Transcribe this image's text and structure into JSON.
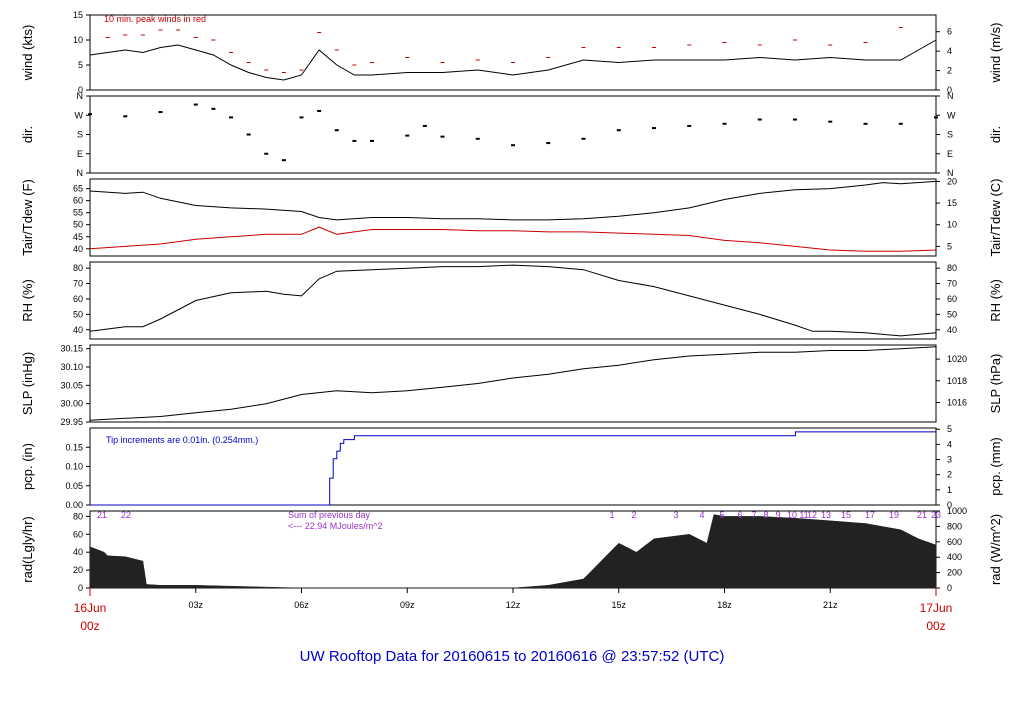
{
  "title": "UW Rooftop Data for 20160615  to  20160616 @ 23:57:52  (UTC)",
  "x_axis": {
    "start_label": [
      "16Jun",
      "00z"
    ],
    "end_label": [
      "17Jun",
      "00z"
    ],
    "ticks": [
      "03z",
      "06z",
      "09z",
      "12z",
      "15z",
      "18z",
      "21z"
    ]
  },
  "colors": {
    "dark": "#000000",
    "red": "#cc0000",
    "blue": "#0000cc",
    "purple": "#9933cc",
    "title": "#0000cc"
  },
  "annotations": {
    "wind_note": "10 min. peak winds in red",
    "pcp_note": "Tip increments are 0.01in. (0.254mm.)",
    "rad_sum_line1": "Sum of previous day",
    "rad_sum_line2": "<--- 22.94 MJoules/m^2",
    "rad_hours": [
      "21",
      "22",
      "1",
      "2",
      "3",
      "4",
      "5",
      "6",
      "7",
      "8",
      "9",
      "10",
      "11",
      "12",
      "13",
      "15",
      "17",
      "19",
      "21",
      "23"
    ]
  },
  "chart_data": [
    {
      "id": "wind",
      "type": "line",
      "ylabel_left": "wind (kts)",
      "ylabel_right": "wind (m/s)",
      "left_ticks": [
        "0",
        "5",
        "10",
        "15"
      ],
      "right_ticks": [
        "0",
        "2",
        "4",
        "6"
      ],
      "ylim": [
        0,
        15
      ],
      "right_ylim": [
        0,
        7.72
      ],
      "series": [
        {
          "name": "wind (kts)",
          "color": "#000000",
          "x": [
            0,
            0.5,
            1,
            1.5,
            2,
            2.5,
            3,
            3.5,
            4,
            4.5,
            5,
            5.5,
            6,
            6.5,
            7,
            7.5,
            8,
            9,
            10,
            11,
            12,
            13,
            14,
            15,
            16,
            17,
            18,
            19,
            20,
            21,
            22,
            23,
            24
          ],
          "y": [
            7,
            7.5,
            8,
            7.5,
            8.5,
            9,
            8,
            7,
            5,
            3.5,
            2.5,
            2,
            3,
            8,
            5,
            3,
            3,
            3.5,
            3.5,
            4,
            3,
            4,
            6,
            5.5,
            6,
            6,
            6,
            6.5,
            6,
            6.5,
            6,
            6,
            10
          ]
        },
        {
          "name": "10 min. peak winds",
          "color": "#cc0000",
          "x": [
            0.5,
            1,
            1.5,
            2,
            2.5,
            3,
            3.5,
            4,
            4.5,
            5,
            5.5,
            6,
            6.5,
            7,
            7.5,
            8,
            9,
            10,
            11,
            12,
            13,
            14,
            15,
            16,
            17,
            18,
            19,
            20,
            21,
            22,
            23
          ],
          "y": [
            10.5,
            11,
            11,
            12,
            12,
            10.5,
            10,
            7.5,
            5.5,
            4,
            3.5,
            4,
            11.5,
            8,
            5,
            5.5,
            6.5,
            5.5,
            6,
            5.5,
            6.5,
            8.5,
            8.5,
            8.5,
            9,
            9.5,
            9,
            10,
            9,
            9.5,
            12.5
          ]
        }
      ]
    },
    {
      "id": "dir",
      "type": "scatter",
      "ylabel_left": "dir.",
      "ylabel_right": "dir.",
      "left_ticks": [
        "N",
        "E",
        "S",
        "W",
        "N"
      ],
      "right_ticks": [
        "N",
        "E",
        "S",
        "W",
        "N"
      ],
      "ylim": [
        0,
        360
      ],
      "series": [
        {
          "name": "direction",
          "color": "#000000",
          "x": [
            0,
            1,
            2,
            3,
            3.5,
            4,
            4.5,
            5,
            5.5,
            6,
            6.5,
            7,
            7.5,
            8,
            9,
            9.5,
            10,
            11,
            12,
            13,
            14,
            15,
            16,
            17,
            18,
            19,
            20,
            21,
            22,
            23,
            24
          ],
          "y": [
            275,
            265,
            285,
            320,
            300,
            260,
            180,
            90,
            60,
            260,
            290,
            200,
            150,
            150,
            175,
            220,
            170,
            160,
            130,
            140,
            160,
            200,
            210,
            220,
            230,
            250,
            250,
            240,
            230,
            230,
            260
          ]
        }
      ]
    },
    {
      "id": "temp",
      "type": "line",
      "ylabel_left": "Tair/Tdew (F)",
      "ylabel_right": "Tair/Tdew (C)",
      "left_ticks": [
        "40",
        "45",
        "50",
        "55",
        "60",
        "65"
      ],
      "right_ticks": [
        "5",
        "10",
        "15",
        "20"
      ],
      "ylim": [
        37,
        69
      ],
      "right_ylim": [
        2.78,
        20.56
      ],
      "series": [
        {
          "name": "Tair",
          "color": "#000000",
          "x": [
            0,
            1,
            1.5,
            2,
            3,
            4,
            5,
            6,
            6.5,
            7,
            8,
            9,
            10,
            11,
            12,
            13,
            14,
            15,
            16,
            17,
            18,
            19,
            20,
            21,
            22,
            22.5,
            23,
            24
          ],
          "y": [
            64,
            63,
            63.5,
            61,
            58,
            57,
            56.5,
            55.5,
            53,
            52,
            53,
            53,
            52.5,
            52.5,
            52,
            52,
            52.5,
            53.5,
            55,
            57,
            60.5,
            63,
            64.5,
            65,
            66.5,
            67.5,
            67,
            68
          ]
        },
        {
          "name": "Tdew",
          "color": "#cc0000",
          "x": [
            0,
            1,
            2,
            3,
            4,
            5,
            6,
            6.5,
            7,
            7.5,
            8,
            9,
            10,
            11,
            12,
            13,
            14,
            15,
            16,
            17,
            18,
            19,
            20,
            21,
            22,
            23,
            24
          ],
          "y": [
            40,
            41,
            42,
            44,
            45,
            46,
            46,
            49,
            46,
            47,
            48,
            48,
            48,
            47.5,
            47.5,
            47,
            47,
            46.5,
            46,
            45.5,
            43.5,
            42.5,
            41,
            39.5,
            39,
            39,
            39.5
          ]
        }
      ]
    },
    {
      "id": "rh",
      "type": "line",
      "ylabel_left": "RH (%)",
      "ylabel_right": "RH (%)",
      "left_ticks": [
        "40",
        "50",
        "60",
        "70",
        "80"
      ],
      "right_ticks": [
        "40",
        "50",
        "60",
        "70",
        "80"
      ],
      "ylim": [
        34,
        84
      ],
      "series": [
        {
          "name": "RH",
          "color": "#000000",
          "x": [
            0,
            1,
            1.5,
            2,
            3,
            4,
            5,
            5.5,
            6,
            6.5,
            7,
            8,
            9,
            10,
            11,
            12,
            13,
            14,
            15,
            16,
            17,
            18,
            19,
            20,
            20.5,
            21,
            22,
            23,
            24
          ],
          "y": [
            39,
            42,
            42,
            47,
            59,
            64,
            65,
            63,
            62,
            73,
            78,
            79,
            80,
            81,
            81,
            82,
            81,
            79,
            72,
            68,
            62,
            56,
            50,
            43,
            39,
            39,
            38,
            36,
            38
          ]
        }
      ]
    },
    {
      "id": "slp",
      "type": "line",
      "ylabel_left": "SLP (inHg)",
      "ylabel_right": "SLP (hPa)",
      "left_ticks": [
        "29.95",
        "30.00",
        "30.05",
        "30.10",
        "30.15"
      ],
      "right_ticks": [
        "1016",
        "1018",
        "1020"
      ],
      "ylim": [
        29.95,
        30.16
      ],
      "right_ylim": [
        1014.2,
        1021.3
      ],
      "series": [
        {
          "name": "SLP",
          "color": "#000000",
          "x": [
            0,
            1,
            2,
            3,
            4,
            5,
            6,
            7,
            8,
            9,
            10,
            11,
            12,
            13,
            14,
            15,
            16,
            17,
            18,
            19,
            20,
            21,
            22,
            23,
            24
          ],
          "y": [
            29.955,
            29.96,
            29.965,
            29.975,
            29.985,
            30.0,
            30.025,
            30.035,
            30.03,
            30.035,
            30.045,
            30.055,
            30.07,
            30.08,
            30.095,
            30.105,
            30.12,
            30.13,
            30.135,
            30.14,
            30.14,
            30.145,
            30.145,
            30.15,
            30.155
          ]
        }
      ]
    },
    {
      "id": "pcp",
      "type": "line",
      "ylabel_left": "pcp. (in)",
      "ylabel_right": "pcp. (mm)",
      "left_ticks": [
        "0.00",
        "0.05",
        "0.10",
        "0.15"
      ],
      "right_ticks": [
        "0",
        "1",
        "2",
        "3",
        "4",
        "5"
      ],
      "ylim": [
        0,
        0.2
      ],
      "right_ylim": [
        0,
        5.08
      ],
      "series": [
        {
          "name": "precipitation",
          "color": "#0000cc",
          "x": [
            0,
            6.6,
            6.8,
            6.9,
            7.0,
            7.1,
            7.2,
            7.5,
            20.0,
            20.01,
            24
          ],
          "y": [
            0,
            0,
            0.07,
            0.12,
            0.14,
            0.16,
            0.17,
            0.18,
            0.18,
            0.19,
            0.19
          ]
        }
      ]
    },
    {
      "id": "rad",
      "type": "area",
      "ylabel_left": "rad(Lgly/hr)",
      "ylabel_right": "rad (W/m^2)",
      "left_ticks": [
        "0",
        "20",
        "40",
        "60",
        "80"
      ],
      "right_ticks": [
        "0",
        "200",
        "400",
        "600",
        "800",
        "1000"
      ],
      "ylim": [
        0,
        86
      ],
      "right_ylim": [
        0,
        1000
      ],
      "series": [
        {
          "name": "radiation",
          "color": "#222222",
          "x": [
            0,
            0.4,
            0.5,
            1,
            1.5,
            1.6,
            2,
            3,
            4,
            5,
            6,
            7,
            8,
            9,
            10,
            11,
            12,
            13,
            14,
            14.5,
            15,
            15.5,
            16,
            17,
            17.5,
            17.7,
            18,
            19,
            20,
            21,
            22,
            23,
            23.5,
            24
          ],
          "y": [
            46,
            40,
            36,
            35,
            30,
            4,
            3,
            3,
            2,
            1,
            0,
            0,
            0,
            0,
            0,
            0,
            0,
            3,
            10,
            30,
            50,
            40,
            55,
            60,
            50,
            82,
            80,
            80,
            78,
            75,
            72,
            65,
            55,
            48
          ]
        }
      ]
    }
  ]
}
